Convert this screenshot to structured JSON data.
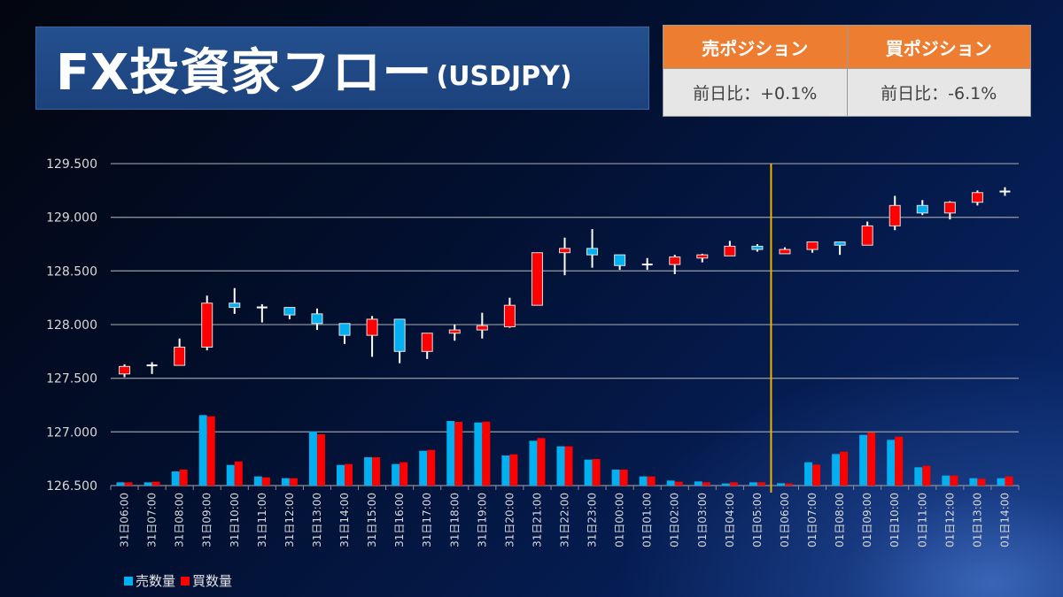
{
  "header": {
    "title": "FX投資家フロー",
    "subtitle": "(USDJPY)"
  },
  "positions": {
    "sell": {
      "label": "売ポジション",
      "change": "前日比：+0.1%"
    },
    "buy": {
      "label": "買ポジション",
      "change": "前日比：-6.1%"
    }
  },
  "colors": {
    "up": "#FF0000",
    "down": "#00B0F0",
    "sell_volume": "#00B0F0",
    "buy_volume": "#FF0000",
    "divider": "#F0B400",
    "header": "#ED7D31"
  },
  "chart_data": {
    "type": "candlestick+bar",
    "ylim": [
      126.5,
      129.5
    ],
    "yticks": [
      "129.500",
      "129.000",
      "128.500",
      "128.000",
      "127.500",
      "127.000",
      "126.500"
    ],
    "grid": true,
    "legend_placement": "bottom-left",
    "legend": [
      "売数量",
      "買数量"
    ],
    "categories": [
      "31日06:00",
      "31日07:00",
      "31日08:00",
      "31日09:00",
      "31日10:00",
      "31日11:00",
      "31日12:00",
      "31日13:00",
      "31日14:00",
      "31日15:00",
      "31日16:00",
      "31日17:00",
      "31日18:00",
      "31日19:00",
      "31日20:00",
      "31日21:00",
      "31日22:00",
      "31日23:00",
      "01日00:00",
      "01日01:00",
      "01日02:00",
      "01日03:00",
      "01日04:00",
      "01日05:00",
      "01日06:00",
      "01日07:00",
      "01日08:00",
      "01日09:00",
      "01日10:00",
      "01日11:00",
      "01日12:00",
      "01日13:00",
      "01日14:00"
    ],
    "divider_after": "01日05:00",
    "ohlc": [
      [
        127.54,
        127.63,
        127.51,
        127.61
      ],
      [
        127.62,
        127.65,
        127.54,
        127.62
      ],
      [
        127.62,
        127.87,
        127.62,
        127.79
      ],
      [
        127.79,
        128.27,
        127.76,
        128.2
      ],
      [
        128.2,
        128.34,
        128.1,
        128.16
      ],
      [
        128.16,
        128.19,
        128.02,
        128.16
      ],
      [
        128.16,
        128.16,
        128.05,
        128.09
      ],
      [
        128.1,
        128.15,
        127.95,
        128.01
      ],
      [
        128.01,
        128.01,
        127.82,
        127.9
      ],
      [
        127.9,
        128.08,
        127.7,
        128.05
      ],
      [
        128.05,
        128.05,
        127.64,
        127.75
      ],
      [
        127.75,
        127.92,
        127.68,
        127.92
      ],
      [
        127.92,
        128.0,
        127.85,
        127.95
      ],
      [
        127.95,
        128.11,
        127.87,
        127.99
      ],
      [
        127.98,
        128.25,
        127.97,
        128.18
      ],
      [
        128.18,
        128.67,
        128.18,
        128.67
      ],
      [
        128.67,
        128.81,
        128.46,
        128.71
      ],
      [
        128.71,
        128.89,
        128.53,
        128.65
      ],
      [
        128.65,
        128.65,
        128.51,
        128.55
      ],
      [
        128.56,
        128.62,
        128.51,
        128.56
      ],
      [
        128.56,
        128.65,
        128.47,
        128.63
      ],
      [
        128.62,
        128.66,
        128.58,
        128.65
      ],
      [
        128.64,
        128.78,
        128.64,
        128.73
      ],
      [
        128.73,
        128.75,
        128.68,
        128.7
      ],
      [
        128.66,
        128.72,
        128.66,
        128.7
      ],
      [
        128.7,
        128.77,
        128.67,
        128.77
      ],
      [
        128.77,
        128.77,
        128.65,
        128.74
      ],
      [
        128.74,
        128.96,
        128.74,
        128.92
      ],
      [
        128.92,
        129.2,
        128.88,
        129.11
      ],
      [
        129.11,
        129.16,
        129.02,
        129.04
      ],
      [
        129.04,
        129.15,
        128.98,
        129.14
      ],
      [
        129.14,
        129.25,
        129.11,
        129.23
      ],
      [
        129.24,
        129.28,
        129.2,
        129.24
      ]
    ],
    "series": [
      {
        "name": "売数量",
        "values": [
          11,
          11,
          48,
          239,
          70,
          31,
          25,
          183,
          70,
          96,
          73,
          118,
          219,
          214,
          102,
          152,
          133,
          88,
          54,
          31,
          17,
          14,
          7,
          11,
          8,
          79,
          107,
          172,
          155,
          62,
          34,
          25,
          25
        ]
      },
      {
        "name": "買数量",
        "values": [
          11,
          13,
          54,
          235,
          82,
          28,
          25,
          174,
          73,
          96,
          79,
          121,
          216,
          217,
          106,
          161,
          133,
          90,
          54,
          31,
          13,
          11,
          11,
          11,
          7,
          71,
          115,
          180,
          166,
          67,
          34,
          23,
          31
        ]
      }
    ]
  }
}
